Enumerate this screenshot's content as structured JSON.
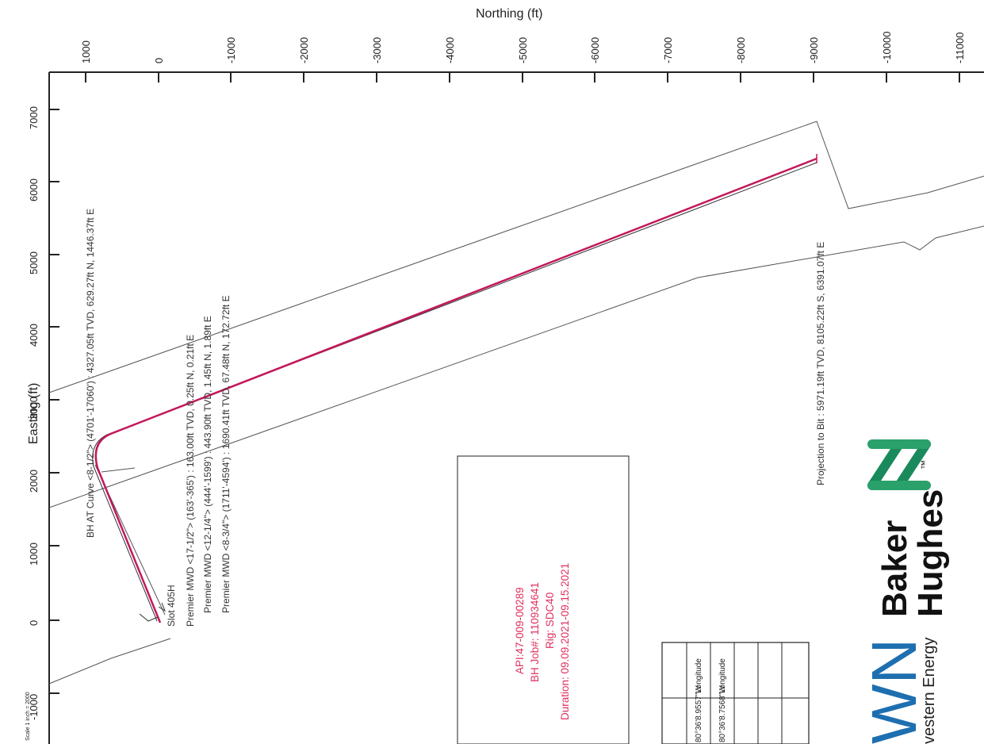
{
  "plot": {
    "northing_axis": {
      "title": "Northing (ft)",
      "ticks": [
        "1000",
        "0",
        "-1000",
        "-2000",
        "-3000",
        "-4000",
        "-5000",
        "-6000",
        "-7000",
        "-8000",
        "-9000",
        "-10000",
        "-11000"
      ]
    },
    "easting_axis": {
      "title": "Easting (ft)",
      "ticks": [
        "7000",
        "6000",
        "5000",
        "4000",
        "3000",
        "2000",
        "1000",
        "0",
        "-1000"
      ]
    },
    "scale_note": "Scale 1 inch = 2000",
    "colors": {
      "wellpath": "#c2185b",
      "boundary": "#555555",
      "info_text": "#e0305f",
      "logo_green": "#1a8a5c"
    }
  },
  "annotations": {
    "bh_at_curve": "BH AT Curve <8-1/2\"> (4701'-17060') : 4327.05ft TVD, 629.27ft N, 1446.37ft E",
    "slot": "Slot 405H",
    "mwd_17": "Premier MWD <17-1/2\"> (163'-365') : 163.00ft TVD, 0.25ft N, 0.21ft E",
    "mwd_12": "Premier MWD <12-1/4\"> (444'-1599') : 443.90ft TVD, 1.45ft N, 1.89ft E",
    "mwd_8": "Premier MWD <8-3/4\"> (1711'-4594') : 1690.41ft TVD, 67.48ft N, 172.72ft E",
    "projection": "Projection to Bit : 5971.19ft TVD, 8105.22ft S, 6391.07ft E"
  },
  "info_box": {
    "api": "API:47-009-00289",
    "job": "BH Job#: 110934641",
    "rig": "Rig: SDC40",
    "duration": "Duration: 09.09.2021-09.15.2021"
  },
  "coord_table": {
    "col1_header": "Longitude",
    "col1_value": "80°36'8.9557\"W",
    "col2_header": "Longitude",
    "col2_value": "80°36'8.7568\"W"
  },
  "logos": {
    "baker_line1": "Baker",
    "baker_line2": "Hughes",
    "trademark": "™",
    "swn_mark": "WN",
    "swn_text": "vestern Energy"
  }
}
